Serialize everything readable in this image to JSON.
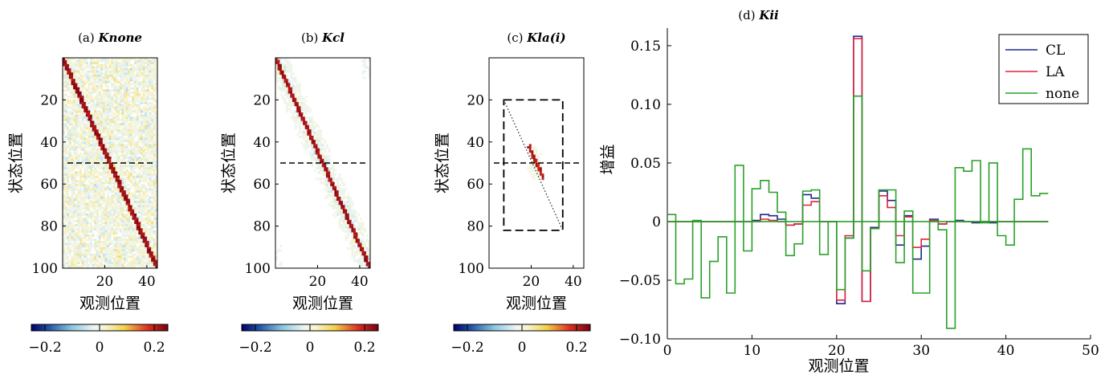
{
  "chart_data": [
    {
      "type": "heatmap",
      "title_prefix": "(a) ",
      "title_emph": "Knone",
      "xlabel": "观测位置",
      "ylabel": "状态位置",
      "xlim": [
        0,
        45
      ],
      "ylim": [
        0,
        100
      ],
      "xticks": [
        20,
        40
      ],
      "yticks": [
        20,
        40,
        60,
        80,
        100
      ],
      "colorbar_ticks": [
        "−0.2",
        "0",
        "0.2"
      ],
      "clim": [
        -0.25,
        0.25
      ],
      "diagonal": {
        "from": [
          0,
          0
        ],
        "to": [
          45,
          100
        ]
      },
      "hline_y": 50,
      "noise": "high",
      "band_width": "full"
    },
    {
      "type": "heatmap",
      "title_prefix": "(b) ",
      "title_emph": "Kcl",
      "xlabel": "观测位置",
      "ylabel": "状态位置",
      "xlim": [
        0,
        45
      ],
      "ylim": [
        0,
        100
      ],
      "xticks": [
        20,
        40
      ],
      "yticks": [
        20,
        40,
        60,
        80,
        100
      ],
      "colorbar_ticks": [
        "−0.2",
        "0",
        "0.2"
      ],
      "clim": [
        -0.25,
        0.25
      ],
      "diagonal": {
        "from": [
          0,
          0
        ],
        "to": [
          45,
          100
        ]
      },
      "hline_y": 50,
      "noise": "band",
      "band_width": "wide"
    },
    {
      "type": "heatmap",
      "title_prefix": "(c) ",
      "title_emph": "Kla(i)",
      "xlabel": "观测位置",
      "ylabel": "状态位置",
      "xlim": [
        0,
        45
      ],
      "ylim": [
        0,
        100
      ],
      "xticks": [
        20,
        40
      ],
      "yticks": [
        20,
        40,
        60,
        80,
        100
      ],
      "colorbar_ticks": [
        "−0.2",
        "0",
        "0.2"
      ],
      "clim": [
        -0.25,
        0.25
      ],
      "dashed_box": {
        "x": [
          7,
          35
        ],
        "y": [
          20,
          82
        ]
      },
      "dotted_line": {
        "from": [
          7,
          20
        ],
        "to": [
          35,
          82
        ]
      },
      "hline_y": 50,
      "noise": "local",
      "local_center": [
        22,
        50
      ]
    },
    {
      "type": "line",
      "title_prefix": "(d) ",
      "title_emph": "Kii",
      "xlabel": "观测位置",
      "ylabel": "增益",
      "xlim": [
        0,
        50
      ],
      "ylim": [
        -0.1,
        0.165
      ],
      "xticks": [
        0,
        10,
        20,
        30,
        40,
        50
      ],
      "yticks": [
        -0.1,
        -0.05,
        0,
        0.05,
        0.1,
        0.15
      ],
      "ytick_labels": [
        "−0.10",
        "−0.05",
        "0",
        "0.05",
        "0.10",
        "0.15"
      ],
      "legend_position": "top-right",
      "zero_line": {
        "x": [
          0,
          45
        ],
        "y": 0,
        "color": "#2aa02a"
      },
      "series": [
        {
          "name": "CL",
          "color": "#1c2a8c",
          "values": [
            0,
            0,
            0,
            0,
            0,
            0,
            0,
            0,
            0,
            0,
            0.001,
            0.006,
            0.005,
            0.002,
            -0.003,
            -0.002,
            0.023,
            0.02,
            0,
            0,
            -0.07,
            -0.014,
            0.158,
            -0.068,
            -0.005,
            0.026,
            0.018,
            -0.02,
            0.005,
            -0.032,
            -0.021,
            0.002,
            -0.002,
            0,
            0.001,
            0,
            -0.001,
            0,
            -0.001,
            0,
            0,
            0,
            0,
            0,
            0
          ]
        },
        {
          "name": "LA",
          "color": "#e0243c",
          "values": [
            0,
            0,
            0,
            0,
            0,
            0,
            0,
            0,
            0,
            0,
            0,
            0.002,
            0.001,
            0,
            -0.003,
            -0.002,
            0.014,
            0.017,
            0,
            0,
            -0.067,
            -0.012,
            0.156,
            -0.068,
            -0.006,
            0.022,
            0.012,
            -0.012,
            0.004,
            -0.022,
            -0.015,
            0.001,
            -0.002,
            0,
            0,
            0,
            0,
            0,
            0,
            0,
            0,
            0,
            0,
            0,
            0
          ]
        },
        {
          "name": "none",
          "color": "#2aa02a",
          "values": [
            0.006,
            -0.053,
            -0.049,
            0.001,
            -0.065,
            -0.034,
            -0.013,
            -0.061,
            0.048,
            -0.025,
            0.028,
            0.035,
            0.025,
            0.008,
            -0.029,
            -0.019,
            0.026,
            0.027,
            -0.028,
            0,
            -0.058,
            -0.014,
            0.107,
            -0.042,
            -0.006,
            0.027,
            0.027,
            -0.035,
            0.009,
            -0.061,
            -0.061,
            0,
            -0.007,
            -0.091,
            0.046,
            0.043,
            0.052,
            -0.001,
            0.05,
            -0.012,
            -0.02,
            0.019,
            0.062,
            0.022,
            0.024
          ]
        }
      ]
    }
  ]
}
